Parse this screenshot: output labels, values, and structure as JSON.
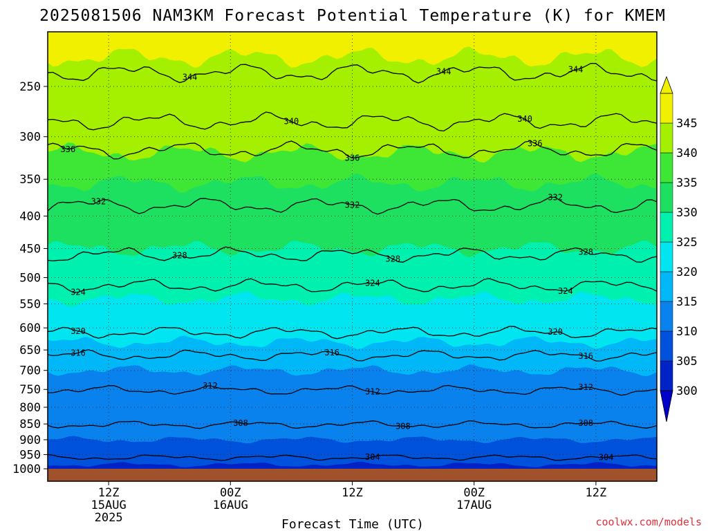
{
  "chart_data": {
    "type": "contour",
    "title": "2025081506 NAM3KM Forecast Potential Temperature (K) for KMEM",
    "xlabel": "Forecast Time (UTC)",
    "ylabel": "",
    "y_scale": "pressure (log), inverted",
    "ylim": [
      1000,
      200
    ],
    "grid": true,
    "y_ticks": [
      {
        "value": 250,
        "label": "250"
      },
      {
        "value": 300,
        "label": "300"
      },
      {
        "value": 350,
        "label": "350"
      },
      {
        "value": 400,
        "label": "400"
      },
      {
        "value": 450,
        "label": "450"
      },
      {
        "value": 500,
        "label": "500"
      },
      {
        "value": 550,
        "label": "550"
      },
      {
        "value": 600,
        "label": "600"
      },
      {
        "value": 650,
        "label": "650"
      },
      {
        "value": 700,
        "label": "700"
      },
      {
        "value": 750,
        "label": "750"
      },
      {
        "value": 800,
        "label": "800"
      },
      {
        "value": 850,
        "label": "850"
      },
      {
        "value": 900,
        "label": "900"
      },
      {
        "value": 950,
        "label": "950"
      },
      {
        "value": 1000,
        "label": "1000"
      }
    ],
    "x_range_hours": [
      6,
      66
    ],
    "x_ticks": [
      {
        "hour": 12,
        "lines": [
          "12Z",
          "15AUG",
          "2025"
        ]
      },
      {
        "hour": 24,
        "lines": [
          "00Z",
          "16AUG"
        ]
      },
      {
        "hour": 36,
        "lines": [
          "12Z"
        ]
      },
      {
        "hour": 48,
        "lines": [
          "00Z",
          "17AUG"
        ]
      },
      {
        "hour": 60,
        "lines": [
          "12Z"
        ]
      }
    ],
    "colorbar": {
      "levels": [
        300,
        305,
        310,
        315,
        320,
        325,
        330,
        335,
        340,
        345
      ],
      "labels": [
        "300",
        "305",
        "310",
        "315",
        "320",
        "325",
        "330",
        "335",
        "340",
        "345"
      ],
      "colors": [
        "#0023c8",
        "#0052dc",
        "#0a82ee",
        "#00b8f8",
        "#00e5f0",
        "#00f0b0",
        "#1ee060",
        "#3ee636",
        "#a4f000",
        "#f0f000"
      ]
    },
    "contours": [
      {
        "value": 304,
        "base": 960,
        "label": "304",
        "label_hours": [
          38,
          61
        ]
      },
      {
        "value": 308,
        "base": 852,
        "label": "308",
        "label_hours": [
          25,
          41,
          59
        ]
      },
      {
        "value": 312,
        "base": 752,
        "label": "312",
        "label_hours": [
          22,
          38,
          59
        ]
      },
      {
        "value": 316,
        "base": 663,
        "label": "316",
        "label_hours": [
          9,
          34,
          59
        ]
      },
      {
        "value": 320,
        "base": 610,
        "label": "320",
        "label_hours": [
          9,
          56
        ]
      },
      {
        "value": 324,
        "base": 515,
        "label": "324",
        "label_hours": [
          9,
          38,
          57
        ]
      },
      {
        "value": 328,
        "base": 460,
        "label": "328",
        "label_hours": [
          19,
          40,
          59
        ]
      },
      {
        "value": 332,
        "base": 385,
        "label": "332",
        "label_hours": [
          11,
          36,
          56
        ]
      },
      {
        "value": 336,
        "base": 315,
        "label": "336",
        "label_hours": [
          8,
          36,
          54
        ]
      },
      {
        "value": 340,
        "base": 284,
        "label": "340",
        "label_hours": [
          30,
          53
        ]
      },
      {
        "value": 344,
        "base": 238,
        "label": "344",
        "label_hours": [
          20,
          45,
          58
        ]
      }
    ],
    "fill_boundaries": [
      {
        "upper": 300,
        "base": 1015
      },
      {
        "upper": 305,
        "base": 985
      },
      {
        "upper": 310,
        "base": 900
      },
      {
        "upper": 315,
        "base": 700
      },
      {
        "upper": 320,
        "base": 632
      },
      {
        "upper": 325,
        "base": 540
      },
      {
        "upper": 330,
        "base": 450
      },
      {
        "upper": 335,
        "base": 355
      },
      {
        "upper": 340,
        "base": 318
      },
      {
        "upper": 345,
        "base": 225
      }
    ]
  },
  "credit": "coolwx.com/models"
}
